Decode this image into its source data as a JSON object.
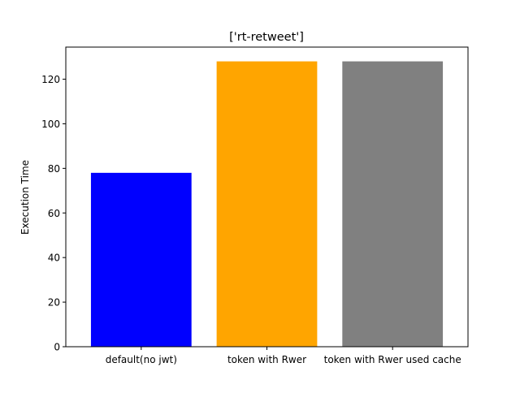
{
  "chart_data": {
    "type": "bar",
    "title": "['rt-retweet']",
    "xlabel": "",
    "ylabel": "Execution Time",
    "categories": [
      "default(no jwt)",
      "token with Rwer",
      "token with Rwer used cache"
    ],
    "values": [
      78,
      128,
      128
    ],
    "colors": [
      "#0000ff",
      "#ffa500",
      "#808080"
    ],
    "ylim": [
      0,
      134.4
    ],
    "yticks": [
      0,
      20,
      40,
      60,
      80,
      100,
      120
    ],
    "grid": false,
    "legend": "none"
  }
}
